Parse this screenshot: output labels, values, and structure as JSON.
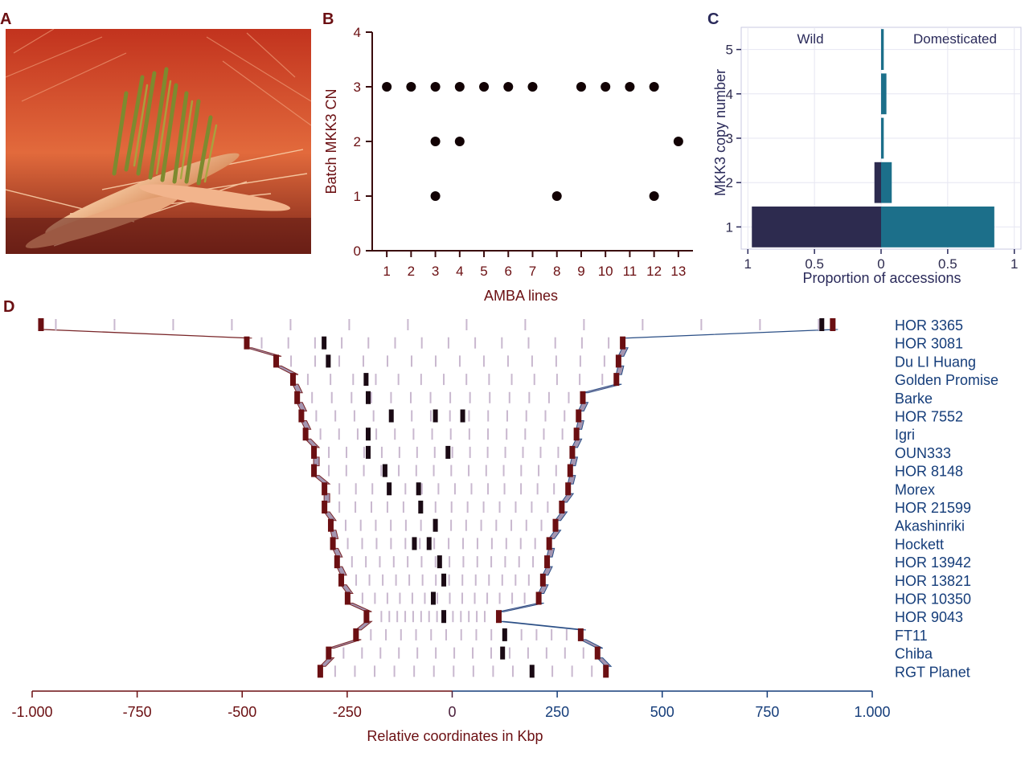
{
  "panel_labels": {
    "a": "A",
    "b": "B",
    "c": "C",
    "d": "D"
  },
  "colors": {
    "red": "#6b0f12",
    "navy": "#2d2b4f",
    "teal": "#1c6f8a",
    "blue": "#153d7a",
    "ribbon": "#9b8aa8"
  },
  "chart_data": [
    {
      "panel": "B",
      "type": "scatter",
      "xlabel": "AMBA lines",
      "ylabel": "Batch MKK3 CN",
      "x_ticks": [
        "1",
        "2",
        "3",
        "4",
        "5",
        "6",
        "7",
        "8",
        "9",
        "10",
        "11",
        "12",
        "13"
      ],
      "y_ticks": [
        "0",
        "1",
        "2",
        "3",
        "4"
      ],
      "xlim": [
        0.4,
        13.6
      ],
      "ylim": [
        0,
        4
      ],
      "points": [
        {
          "x": 1,
          "y": 3
        },
        {
          "x": 2,
          "y": 3
        },
        {
          "x": 3,
          "y": 3
        },
        {
          "x": 3,
          "y": 2
        },
        {
          "x": 3,
          "y": 1
        },
        {
          "x": 4,
          "y": 3
        },
        {
          "x": 4,
          "y": 2
        },
        {
          "x": 5,
          "y": 3
        },
        {
          "x": 6,
          "y": 3
        },
        {
          "x": 7,
          "y": 3
        },
        {
          "x": 8,
          "y": 1
        },
        {
          "x": 9,
          "y": 3
        },
        {
          "x": 10,
          "y": 3
        },
        {
          "x": 11,
          "y": 3
        },
        {
          "x": 12,
          "y": 3
        },
        {
          "x": 12,
          "y": 1
        },
        {
          "x": 13,
          "y": 2
        }
      ]
    },
    {
      "panel": "C",
      "type": "bar",
      "orientation": "horizontal-diverging",
      "xlabel": "Proportion of accessions",
      "ylabel": "MKK3 copy number",
      "x_ticks": [
        "1",
        "0.5",
        "0",
        "0.5",
        "1"
      ],
      "categories": [
        "1",
        "2",
        "3",
        "4",
        "5"
      ],
      "series": [
        {
          "name": "Wild",
          "values": [
            0.97,
            0.05,
            0.0,
            0.0,
            0.0
          ]
        },
        {
          "name": "Domesticated",
          "values": [
            0.85,
            0.08,
            0.02,
            0.04,
            0.02
          ]
        }
      ],
      "xlim": [
        -1.05,
        1.05
      ],
      "grid": true
    },
    {
      "panel": "D",
      "type": "synteny",
      "xlabel": "Relative coordinates in Kbp",
      "x_ticks": [
        "-1.000",
        "-750",
        "-500",
        "-250",
        "0",
        "250",
        "500",
        "750",
        "1.000"
      ],
      "xlim": [
        -1000,
        1000
      ],
      "genomes": [
        "HOR 3365",
        "HOR 3081",
        "Du LI Huang",
        "Golden Promise",
        "Barke",
        "HOR 7552",
        "Igri",
        "OUN333",
        "HOR 8148",
        "Morex",
        "HOR 21599",
        "Akashinriki",
        "Hockett",
        "HOR 13942",
        "HOR 13821",
        "HOR 10350",
        "HOR 9043",
        "FT11",
        "Chiba",
        "RGT Planet"
      ],
      "left_boundary": [
        -980,
        -490,
        -420,
        -380,
        -370,
        -360,
        -350,
        -330,
        -330,
        -305,
        -305,
        -290,
        -285,
        -275,
        -265,
        -250,
        -205,
        -230,
        -295,
        -315
      ],
      "right_boundary": [
        905,
        405,
        395,
        390,
        310,
        300,
        295,
        285,
        280,
        275,
        260,
        245,
        230,
        225,
        215,
        205,
        110,
        305,
        345,
        365
      ],
      "mkk3_positions": [
        880,
        -305,
        -295,
        -205,
        -200,
        -145,
        -200,
        -200,
        -160,
        -150,
        -75,
        -40,
        -90,
        -30,
        -20,
        -45,
        -20,
        125,
        120,
        190
      ],
      "extra_copies": [
        [],
        [],
        [],
        [],
        [],
        [
          -40,
          25
        ],
        [],
        [
          -10
        ],
        [],
        [
          -80
        ],
        [],
        [],
        [
          -55
        ],
        [],
        [],
        [],
        [],
        [],
        [],
        []
      ]
    }
  ]
}
